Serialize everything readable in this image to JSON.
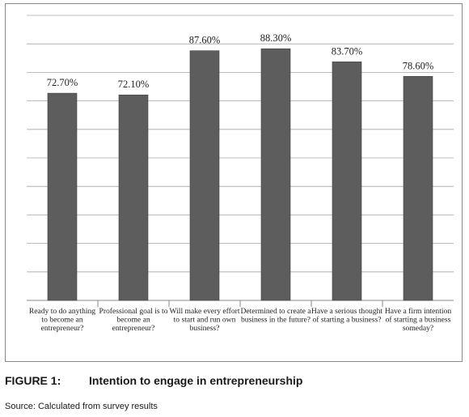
{
  "figure": {
    "number_label": "FIGURE 1:",
    "title": "Intention to engage in entrepreneurship",
    "source": "Source: Calculated from survey results"
  },
  "chart_data": {
    "type": "bar",
    "categories": [
      [
        "Ready to do anything",
        "to become an",
        "entrepreneur?"
      ],
      [
        "Professional goal is to",
        "become an",
        "entrepreneur?"
      ],
      [
        "Will make every effort",
        "to start and run own",
        "business?"
      ],
      [
        "Determined to create a",
        "business in the future?"
      ],
      [
        "Have a serious thought",
        "of starting a business?"
      ],
      [
        "Have a firm intention",
        "of starting a business",
        "someday?"
      ]
    ],
    "values": [
      72.7,
      72.1,
      87.6,
      88.3,
      83.7,
      78.6
    ],
    "data_labels": [
      "72.70%",
      "72.10%",
      "87.60%",
      "88.30%",
      "83.70%",
      "78.60%"
    ],
    "ylim": [
      0,
      100
    ],
    "gridlines": 10,
    "grid": true,
    "legend": "none",
    "bar_color": "#5d5d5d"
  }
}
